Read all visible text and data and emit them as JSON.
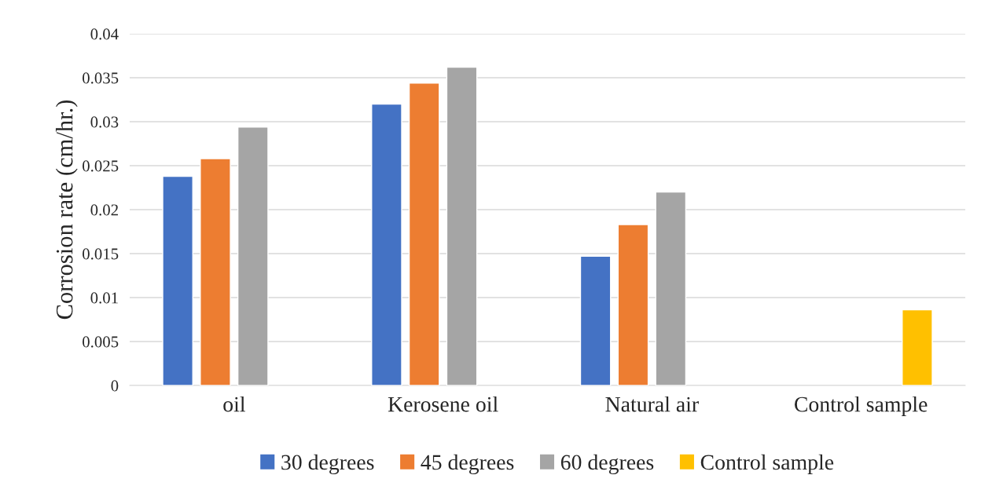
{
  "chart_data": {
    "type": "bar",
    "ylabel": "Corrosion rate (cm/hr.)",
    "categories": [
      "oil",
      "Kerosene oil",
      "Natural air",
      "Control sample"
    ],
    "series": [
      {
        "name": "30 degrees",
        "color": "#4472c4",
        "values": [
          0.0238,
          0.032,
          0.0147,
          null
        ]
      },
      {
        "name": "45 degrees",
        "color": "#ed7d31",
        "values": [
          0.0258,
          0.0344,
          0.0183,
          null
        ]
      },
      {
        "name": "60 degrees",
        "color": "#a5a5a5",
        "values": [
          0.0294,
          0.0362,
          0.022,
          null
        ]
      },
      {
        "name": "Control sample",
        "color": "#ffc000",
        "values": [
          null,
          null,
          null,
          0.0086
        ]
      }
    ],
    "ylim": [
      0,
      0.04
    ],
    "yticks": [
      0,
      0.005,
      0.01,
      0.015,
      0.02,
      0.025,
      0.03,
      0.035,
      0.04
    ],
    "grid": "y",
    "legend": "bottom"
  }
}
